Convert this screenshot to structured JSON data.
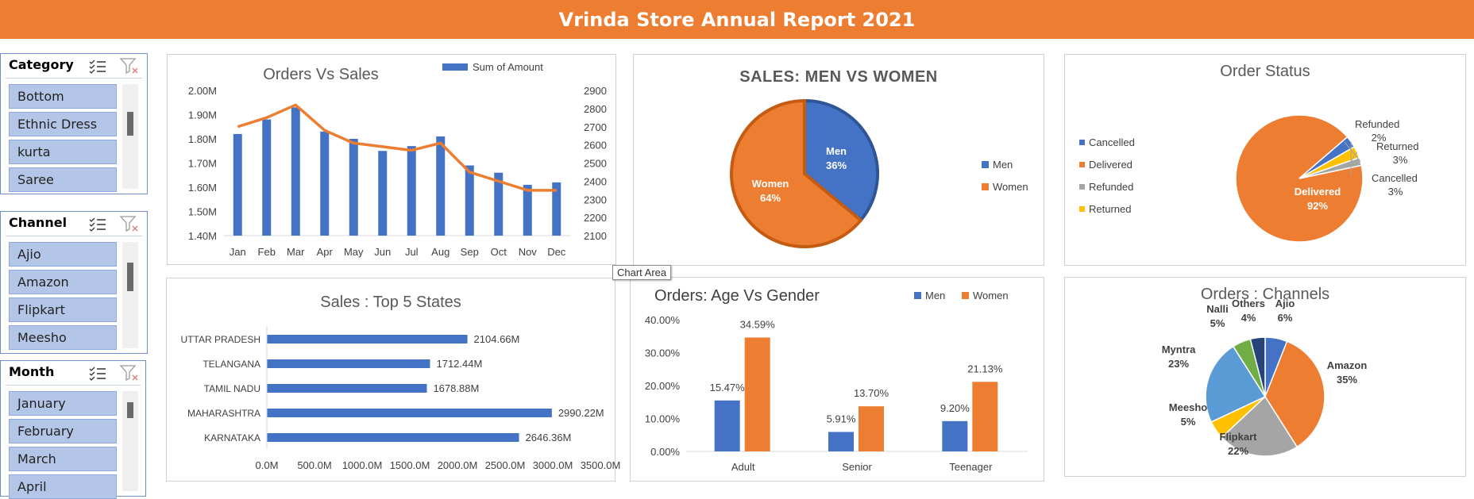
{
  "header": {
    "title": "Vrinda Store Annual Report 2021"
  },
  "slicers": [
    {
      "title": "Category",
      "items": [
        "Bottom",
        "Ethnic Dress",
        "kurta",
        "Saree"
      ]
    },
    {
      "title": "Channel",
      "items": [
        "Ajio",
        "Amazon",
        "Flipkart",
        "Meesho"
      ]
    },
    {
      "title": "Month",
      "items": [
        "January",
        "February",
        "March",
        "April"
      ]
    }
  ],
  "tooltip": "Chart Area",
  "colors": {
    "blue": "#4472C4",
    "orange": "#ED7D31",
    "gray": "#A5A5A5",
    "yellow": "#FFC000",
    "lightblue": "#5B9BD5",
    "green": "#70AD47",
    "navy": "#264478",
    "header": "#ED7D31"
  },
  "chart_data": [
    {
      "id": "orders-vs-sales",
      "type": "bar",
      "title": "Orders Vs Sales",
      "categories": [
        "Jan",
        "Feb",
        "Mar",
        "Apr",
        "May",
        "Jun",
        "Jul",
        "Aug",
        "Sep",
        "Oct",
        "Nov",
        "Dec"
      ],
      "series": [
        {
          "name": "Sum of Amount",
          "type": "bar",
          "axis": "left",
          "values": [
            1.82,
            1.88,
            1.93,
            1.83,
            1.8,
            1.75,
            1.77,
            1.81,
            1.69,
            1.66,
            1.61,
            1.62
          ]
        },
        {
          "type": "line",
          "axis": "right",
          "values": [
            2700,
            2750,
            2820,
            2680,
            2610,
            2590,
            2570,
            2610,
            2450,
            2400,
            2350,
            2350
          ]
        }
      ],
      "y_left": {
        "ticks": [
          "1.40M",
          "1.50M",
          "1.60M",
          "1.70M",
          "1.80M",
          "1.90M",
          "2.00M"
        ],
        "ylim": [
          1.4,
          2.0
        ]
      },
      "y_right": {
        "ticks": [
          "2100",
          "2200",
          "2300",
          "2400",
          "2500",
          "2600",
          "2700",
          "2800",
          "2900"
        ],
        "ylim": [
          2100,
          2900
        ]
      },
      "legend": "top-right"
    },
    {
      "id": "sales-men-vs-women",
      "type": "pie",
      "title": "SALES: MEN VS WOMEN",
      "slices": [
        {
          "name": "Men",
          "value": 36,
          "label": "Men\n36%"
        },
        {
          "name": "Women",
          "value": 64,
          "label": "Women\n64%"
        }
      ],
      "legend": "right"
    },
    {
      "id": "order-status",
      "type": "pie",
      "title": "Order Status",
      "slices": [
        {
          "name": "Cancelled",
          "value": 3,
          "label_name": "Cancelled",
          "label_pct": "3%"
        },
        {
          "name": "Delivered",
          "value": 92,
          "label_name": "Delivered",
          "label_pct": "92%"
        },
        {
          "name": "Refunded",
          "value": 2,
          "label_name": "Refunded",
          "label_pct": "2%"
        },
        {
          "name": "Returned",
          "value": 3,
          "label_name": "Returned",
          "label_pct": "3%"
        }
      ],
      "legend": "left"
    },
    {
      "id": "top-5-states",
      "type": "bar",
      "orientation": "horizontal",
      "title": "Sales : Top 5 States",
      "categories": [
        "UTTAR PRADESH",
        "TELANGANA",
        "TAMIL NADU",
        "MAHARASHTRA",
        "KARNATAKA"
      ],
      "values": [
        2104.66,
        1712.44,
        1678.88,
        2990.22,
        2646.36
      ],
      "data_labels": [
        "2104.66M",
        "1712.44M",
        "1678.88M",
        "2990.22M",
        "2646.36M"
      ],
      "x_ticks": [
        "0.0M",
        "500.0M",
        "1000.0M",
        "1500.0M",
        "2000.0M",
        "2500.0M",
        "3000.0M",
        "3500.0M"
      ],
      "xlim": [
        0,
        3500
      ]
    },
    {
      "id": "age-vs-gender",
      "type": "bar",
      "title": "Orders: Age Vs Gender",
      "categories": [
        "Adult",
        "Senior",
        "Teenager"
      ],
      "series": [
        {
          "name": "Men",
          "values": [
            15.47,
            5.91,
            9.2
          ],
          "labels": [
            "15.47%",
            "5.91%",
            "9.20%"
          ]
        },
        {
          "name": "Women",
          "values": [
            34.59,
            13.7,
            21.13
          ],
          "labels": [
            "34.59%",
            "13.70%",
            "21.13%"
          ]
        }
      ],
      "y_ticks": [
        "0.00%",
        "10.00%",
        "20.00%",
        "30.00%",
        "40.00%"
      ],
      "ylim": [
        0,
        40
      ],
      "legend": "top-right"
    },
    {
      "id": "orders-channels",
      "type": "pie",
      "title": "Orders : Channels",
      "slices": [
        {
          "name": "Ajio",
          "value": 6,
          "label_pct": "6%"
        },
        {
          "name": "Amazon",
          "value": 35,
          "label_pct": "35%"
        },
        {
          "name": "Flipkart",
          "value": 22,
          "label_pct": "22%"
        },
        {
          "name": "Meesho",
          "value": 5,
          "label_pct": "5%"
        },
        {
          "name": "Myntra",
          "value": 23,
          "label_pct": "23%"
        },
        {
          "name": "Nalli",
          "value": 5,
          "label_pct": "5%"
        },
        {
          "name": "Others",
          "value": 4,
          "label_pct": "4%"
        }
      ]
    }
  ]
}
